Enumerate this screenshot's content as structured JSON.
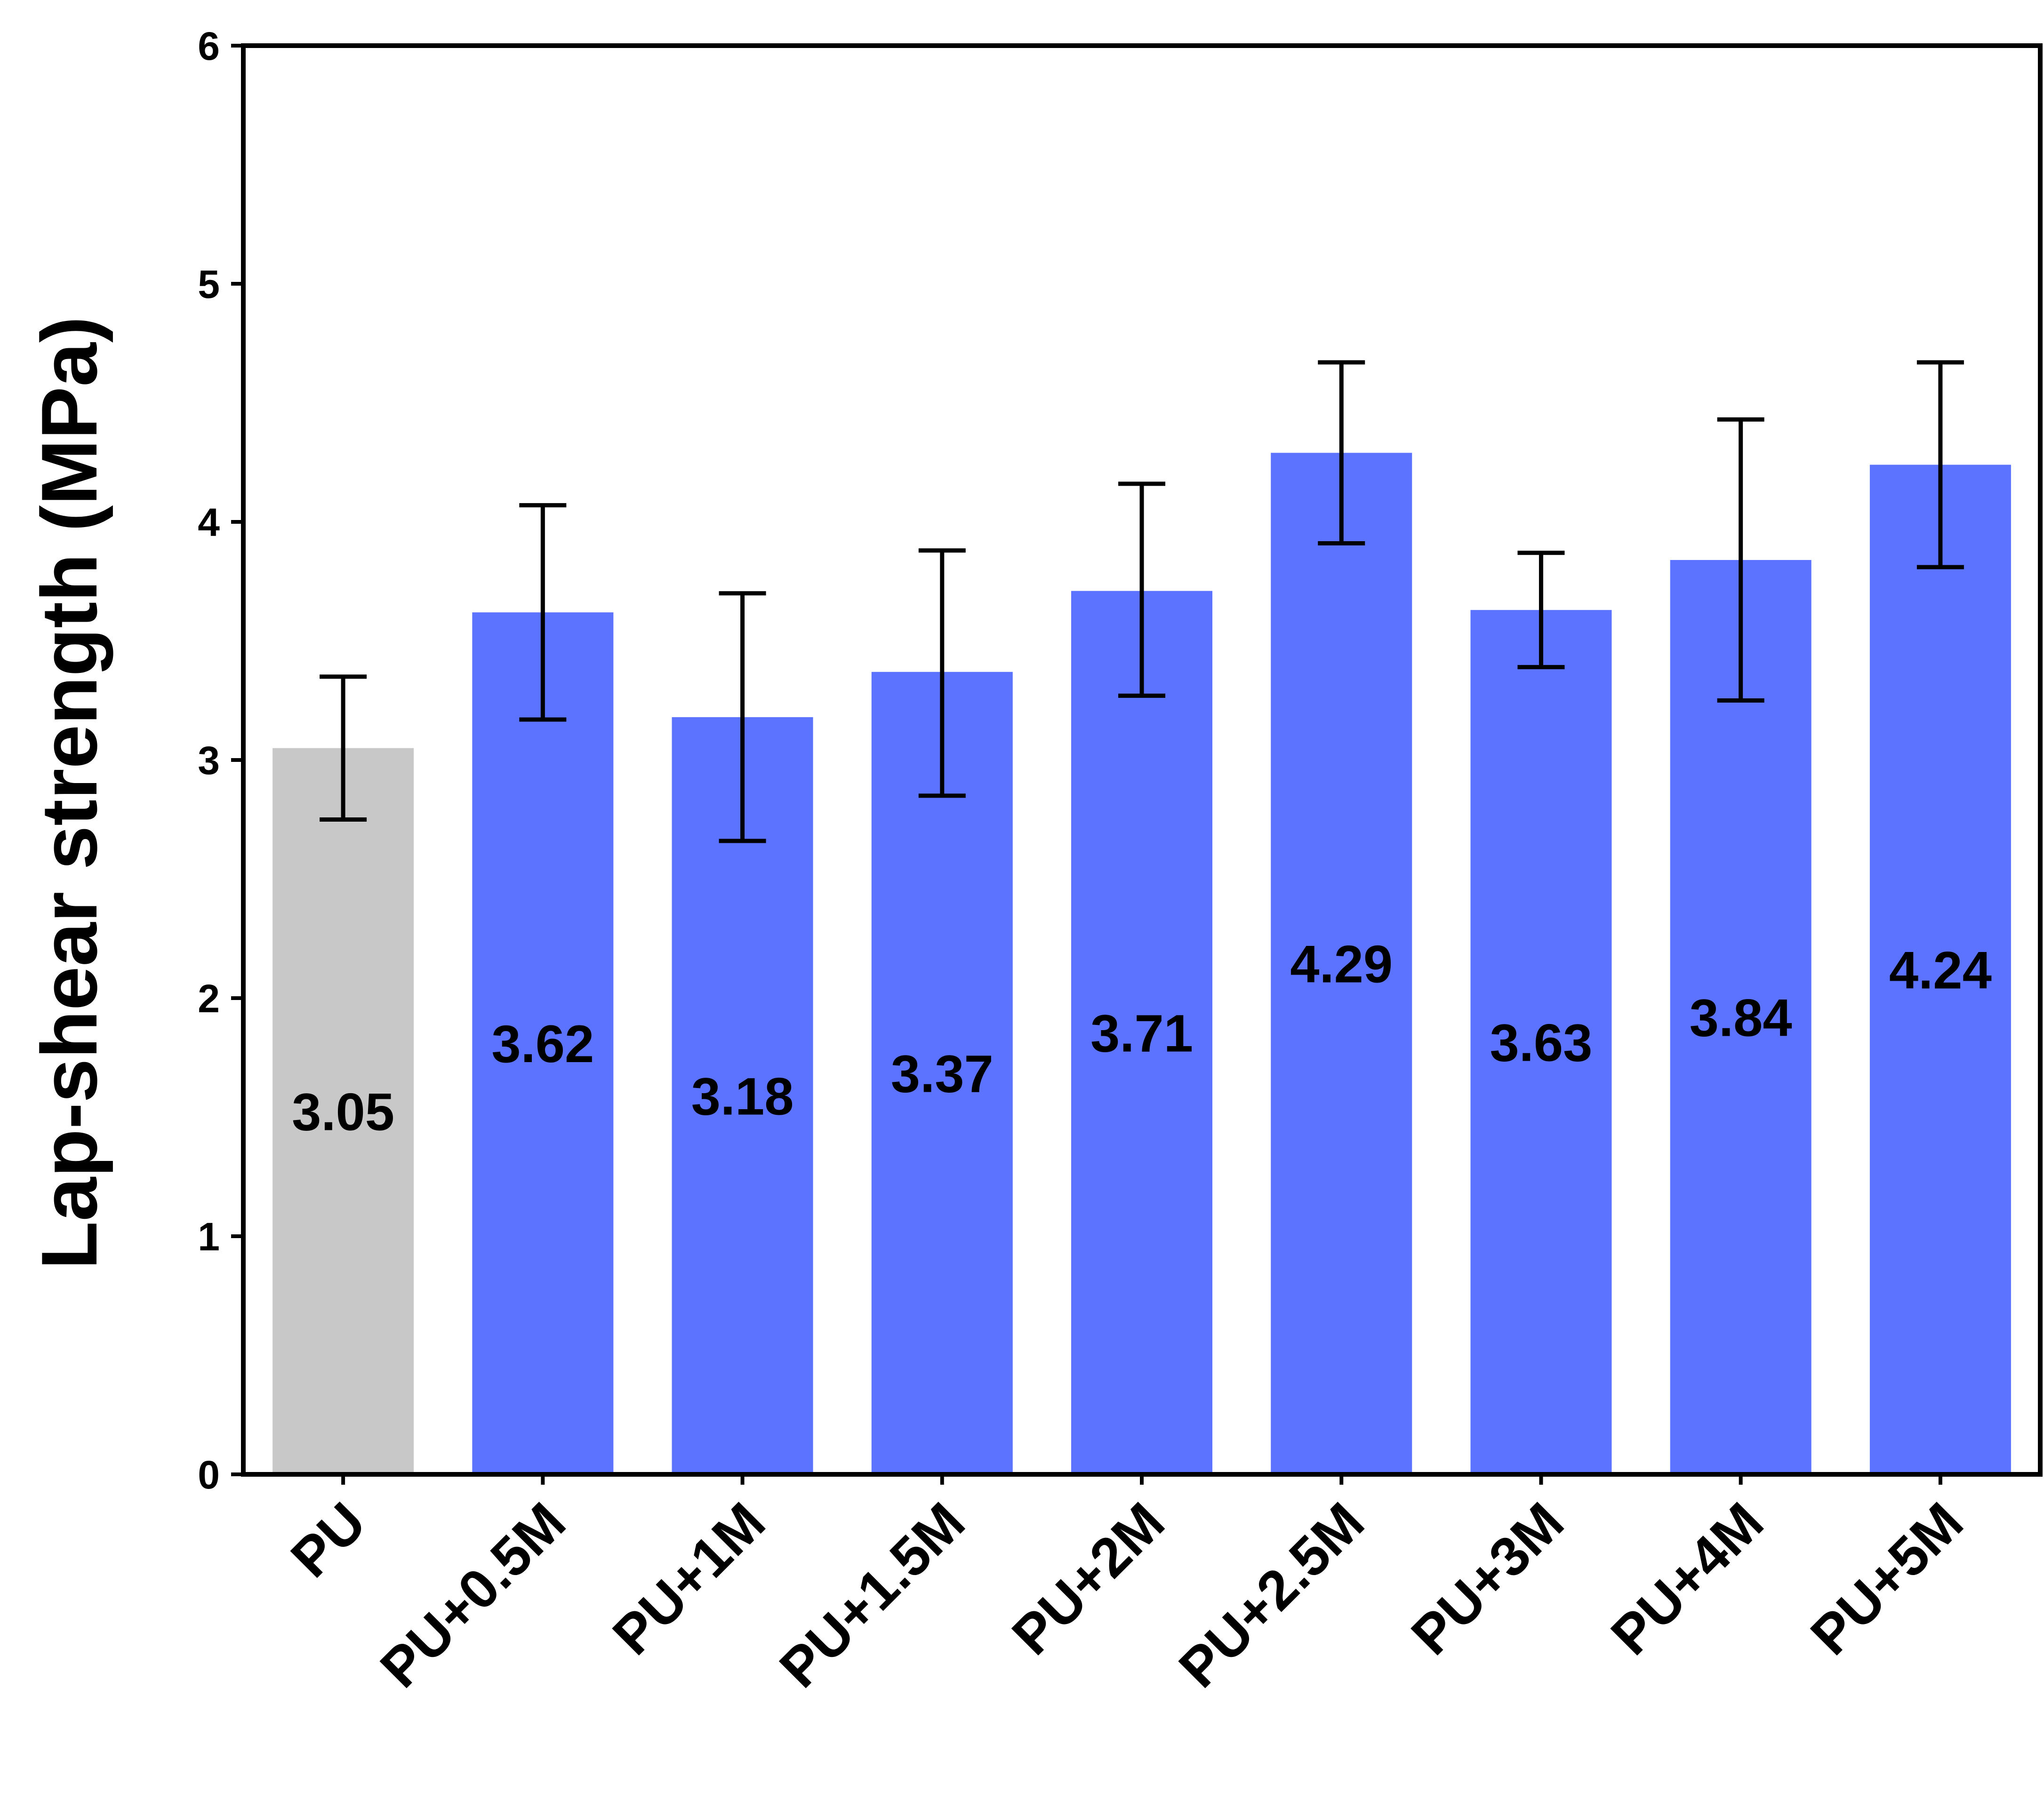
{
  "chart_data": {
    "type": "bar",
    "title": "",
    "xlabel": "",
    "ylabel": "Lap-shear strength (MPa)",
    "ylim": [
      0,
      6
    ],
    "yticks": [
      0,
      1,
      2,
      3,
      4,
      5,
      6
    ],
    "grid": false,
    "legend": "none",
    "categories": [
      "PU",
      "PU+0.5M",
      "PU+1M",
      "PU+1.5M",
      "PU+2M",
      "PU+2.5M",
      "PU+3M",
      "PU+4M",
      "PU+5M"
    ],
    "values": [
      3.05,
      3.62,
      3.18,
      3.37,
      3.71,
      4.29,
      3.63,
      3.84,
      4.24
    ],
    "value_labels": [
      "3.05",
      "3.62",
      "3.18",
      "3.37",
      "3.71",
      "4.29",
      "3.63",
      "3.84",
      "4.24"
    ],
    "error_low": [
      2.75,
      3.17,
      2.66,
      2.85,
      3.27,
      3.91,
      3.39,
      3.25,
      3.81
    ],
    "error_high": [
      3.35,
      4.07,
      3.7,
      3.88,
      4.16,
      4.67,
      3.87,
      4.43,
      4.67
    ],
    "colors": {
      "control_bar": "#c8c8c8",
      "sample_bar": "#5b73ff",
      "axis": "#000000",
      "error_bar": "#000000"
    }
  }
}
